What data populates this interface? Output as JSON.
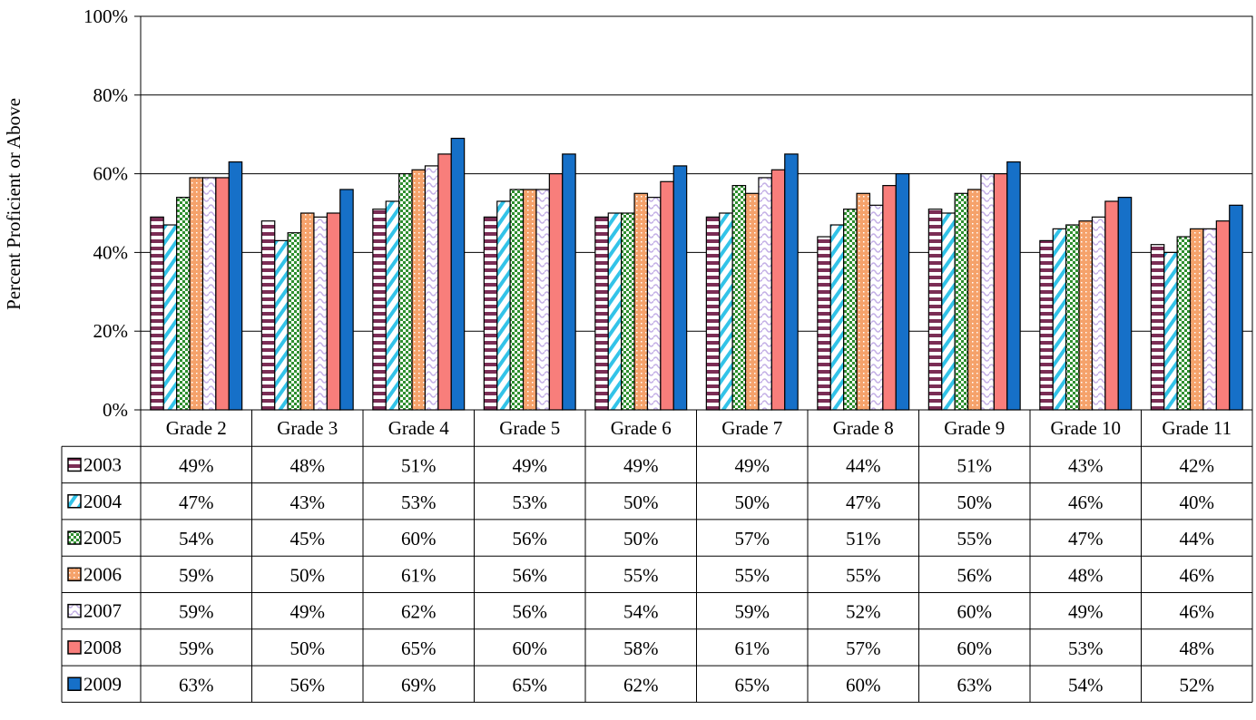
{
  "chart_data": {
    "type": "bar",
    "title": "",
    "xlabel": "",
    "ylabel": "Percent Proficient or Above",
    "ylim": [
      0,
      100
    ],
    "yticks": [
      "0%",
      "20%",
      "40%",
      "60%",
      "80%",
      "100%"
    ],
    "grid": true,
    "legend_placement": "data-table-left",
    "categories": [
      "Grade 2",
      "Grade 3",
      "Grade 4",
      "Grade 5",
      "Grade 6",
      "Grade 7",
      "Grade 8",
      "Grade 9",
      "Grade 10",
      "Grade 11"
    ],
    "series": [
      {
        "name": "2003",
        "pattern": "horizontal-stripes",
        "color": "#7b2d55",
        "values": [
          49,
          48,
          51,
          49,
          49,
          49,
          44,
          51,
          43,
          42
        ],
        "labels": [
          "49%",
          "48%",
          "51%",
          "49%",
          "49%",
          "49%",
          "44%",
          "51%",
          "43%",
          "42%"
        ]
      },
      {
        "name": "2004",
        "pattern": "diagonal-stripes",
        "color": "#33c3e8",
        "values": [
          47,
          43,
          53,
          53,
          50,
          50,
          47,
          50,
          46,
          40
        ],
        "labels": [
          "47%",
          "43%",
          "53%",
          "53%",
          "50%",
          "50%",
          "47%",
          "50%",
          "46%",
          "40%"
        ]
      },
      {
        "name": "2005",
        "pattern": "checker",
        "color": "#2f8f2f",
        "values": [
          54,
          45,
          60,
          56,
          50,
          57,
          51,
          55,
          47,
          44
        ],
        "labels": [
          "54%",
          "45%",
          "60%",
          "56%",
          "50%",
          "57%",
          "51%",
          "55%",
          "47%",
          "44%"
        ]
      },
      {
        "name": "2006",
        "pattern": "dots",
        "color": "#f5a26b",
        "values": [
          59,
          50,
          61,
          56,
          55,
          55,
          55,
          56,
          48,
          46
        ],
        "labels": [
          "59%",
          "50%",
          "61%",
          "56%",
          "55%",
          "55%",
          "55%",
          "56%",
          "48%",
          "46%"
        ]
      },
      {
        "name": "2007",
        "pattern": "waves",
        "color": "#c4b0e6",
        "values": [
          59,
          49,
          62,
          56,
          54,
          59,
          52,
          60,
          49,
          46
        ],
        "labels": [
          "59%",
          "49%",
          "62%",
          "56%",
          "54%",
          "59%",
          "52%",
          "60%",
          "49%",
          "46%"
        ]
      },
      {
        "name": "2008",
        "pattern": "solid",
        "color": "#f87e7b",
        "values": [
          59,
          50,
          65,
          60,
          58,
          61,
          57,
          60,
          53,
          48
        ],
        "labels": [
          "59%",
          "50%",
          "65%",
          "60%",
          "58%",
          "61%",
          "57%",
          "60%",
          "53%",
          "48%"
        ]
      },
      {
        "name": "2009",
        "pattern": "solid",
        "color": "#1670c8",
        "values": [
          63,
          56,
          69,
          65,
          62,
          65,
          60,
          63,
          54,
          52
        ],
        "labels": [
          "63%",
          "56%",
          "69%",
          "65%",
          "62%",
          "65%",
          "60%",
          "63%",
          "54%",
          "52%"
        ]
      }
    ]
  }
}
